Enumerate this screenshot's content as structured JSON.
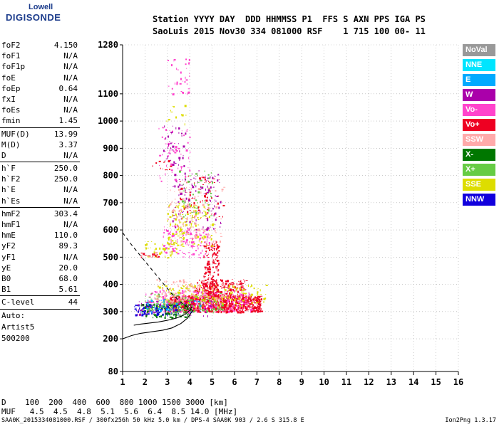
{
  "logo": {
    "line1": "Lowell",
    "line2": "DIGISONDE"
  },
  "header": {
    "line1": "Station YYYY DAY  DDD HHMMSS P1  FFS S AXN PPS IGA PS",
    "line2": "SaoLuis 2015 Nov30 334 081000 RSF    1 715 100 00- 11"
  },
  "parameters": [
    {
      "label": "foF2",
      "value": "4.150"
    },
    {
      "label": "foF1",
      "value": "N/A"
    },
    {
      "label": "foF1p",
      "value": "N/A"
    },
    {
      "label": "foE",
      "value": "N/A"
    },
    {
      "label": "foEp",
      "value": "0.64"
    },
    {
      "label": "fxI",
      "value": "N/A"
    },
    {
      "label": "foEs",
      "value": "N/A"
    },
    {
      "label": "fmin",
      "value": "1.45"
    },
    {
      "label": "MUF(D)",
      "value": "13.99"
    },
    {
      "label": "M(D)",
      "value": "3.37"
    },
    {
      "label": "D",
      "value": "N/A"
    },
    {
      "label": "h`F",
      "value": "250.0"
    },
    {
      "label": "h`F2",
      "value": "250.0"
    },
    {
      "label": "h`E",
      "value": "N/A"
    },
    {
      "label": "h`Es",
      "value": "N/A"
    },
    {
      "label": "hmF2",
      "value": "303.4"
    },
    {
      "label": "hmF1",
      "value": "N/A"
    },
    {
      "label": "hmE",
      "value": "110.0"
    },
    {
      "label": "yF2",
      "value": "89.3"
    },
    {
      "label": "yF1",
      "value": "N/A"
    },
    {
      "label": "yE",
      "value": "20.0"
    },
    {
      "label": "B0",
      "value": "68.0"
    },
    {
      "label": "B1",
      "value": "5.61"
    },
    {
      "label": "C-level",
      "value": "44"
    }
  ],
  "scaling": {
    "line1": "Auto:",
    "line2": "Artist5",
    "line3": "500200"
  },
  "legend": [
    {
      "label": "NoVal",
      "color": "#999999"
    },
    {
      "label": "NNE",
      "color": "#00e5ff"
    },
    {
      "label": "E",
      "color": "#00aaff"
    },
    {
      "label": "W",
      "color": "#aa00aa"
    },
    {
      "label": "Vo-",
      "color": "#ff44cc"
    },
    {
      "label": "Vo+",
      "color": "#ee0022"
    },
    {
      "label": "SSW",
      "color": "#ffaaaa"
    },
    {
      "label": "X-",
      "color": "#007700"
    },
    {
      "label": "X+",
      "color": "#66cc44"
    },
    {
      "label": "SSE",
      "color": "#dddd00"
    },
    {
      "label": "NNW",
      "color": "#1100dd"
    }
  ],
  "muf_table": {
    "line1": "D    100  200  400  600  800 1000 1500 3000 [km]",
    "line2": "MUF   4.5  4.5  4.8  5.1  5.6  6.4  8.5 14.0 [MHz]"
  },
  "footer": {
    "left": "SAA0K_2015334081000.RSF / 300fx256h 50 kHz 5.0 km / DPS-4 SAA0K 903 / 2.6 S 315.8 E",
    "right": "Ion2Png 1.3.17"
  },
  "chart_data": {
    "type": "scatter",
    "xlim": [
      1,
      16
    ],
    "ylim": [
      80,
      1280
    ],
    "x_ticks": [
      "1",
      "2",
      "3",
      "4",
      "5",
      "6",
      "7",
      "8",
      "9",
      "10",
      "11",
      "12",
      "13",
      "14",
      "15",
      "16"
    ],
    "y_ticks": [
      {
        "value": 80,
        "label": "80"
      },
      {
        "value": 200,
        "label": "200"
      },
      {
        "value": 300,
        "label": "300"
      },
      {
        "value": 400,
        "label": "400"
      },
      {
        "value": 500,
        "label": "500"
      },
      {
        "value": 600,
        "label": "600"
      },
      {
        "value": 700,
        "label": "700"
      },
      {
        "value": 800,
        "label": "800"
      },
      {
        "value": 900,
        "label": "900"
      },
      {
        "value": 1000,
        "label": "1000"
      },
      {
        "value": 1100,
        "label": "1100"
      },
      {
        "value": 1280,
        "label": "1280"
      }
    ],
    "grid": "dotted",
    "profile_curve": {
      "x": [
        1.0,
        1.4,
        1.8,
        2.3,
        2.8,
        3.2,
        3.6,
        3.9,
        4.1,
        4.15
      ],
      "y": [
        200,
        212,
        220,
        226,
        232,
        240,
        256,
        276,
        300,
        303.4
      ]
    },
    "profile_extrapolation": {
      "x": [
        1.0,
        1.4,
        1.8,
        2.3,
        2.8,
        3.2,
        3.6,
        3.9,
        4.15
      ],
      "y": [
        590,
        545,
        505,
        455,
        405,
        365,
        335,
        315,
        303.4
      ]
    },
    "trace_curve": {
      "x": [
        1.5,
        1.8,
        2.2,
        2.6,
        3.0,
        3.4,
        3.8,
        4.0,
        4.1
      ],
      "y": [
        250,
        254,
        258,
        262,
        268,
        276,
        290,
        305,
        318
      ]
    },
    "echo_regions": [
      {
        "color": "#ee0022",
        "xr": [
          3.0,
          7.2
        ],
        "yr": [
          300,
          360
        ],
        "n": 900
      },
      {
        "color": "#ee0022",
        "xr": [
          4.2,
          6.5
        ],
        "yr": [
          340,
          420
        ],
        "n": 250
      },
      {
        "color": "#ff44cc",
        "xr": [
          2.0,
          6.8
        ],
        "yr": [
          300,
          380
        ],
        "n": 300
      },
      {
        "color": "#007700",
        "xr": [
          1.8,
          4.0
        ],
        "yr": [
          280,
          330
        ],
        "n": 160
      },
      {
        "color": "#66cc44",
        "xr": [
          2.0,
          5.5
        ],
        "yr": [
          300,
          370
        ],
        "n": 160
      },
      {
        "color": "#dddd00",
        "xr": [
          2.5,
          7.4
        ],
        "yr": [
          320,
          400
        ],
        "n": 180
      },
      {
        "color": "#1100dd",
        "xr": [
          1.5,
          3.5
        ],
        "yr": [
          290,
          330
        ],
        "n": 80
      },
      {
        "color": "#aa00aa",
        "xr": [
          1.6,
          5.0
        ],
        "yr": [
          285,
          340
        ],
        "n": 60
      },
      {
        "color": "#00aaff",
        "xr": [
          2.0,
          4.5
        ],
        "yr": [
          300,
          350
        ],
        "n": 40
      },
      {
        "color": "#ffaaaa",
        "xr": [
          2.5,
          5.5
        ],
        "yr": [
          340,
          420
        ],
        "n": 100
      },
      {
        "color": "#ee0022",
        "xr": [
          4.6,
          5.3
        ],
        "yr": [
          360,
          560
        ],
        "n": 160
      },
      {
        "color": "#ff44cc",
        "xr": [
          2.8,
          5.0
        ],
        "yr": [
          500,
          620
        ],
        "n": 140
      },
      {
        "color": "#dddd00",
        "xr": [
          3.0,
          5.0
        ],
        "yr": [
          540,
          700
        ],
        "n": 160
      },
      {
        "color": "#ffaaaa",
        "xr": [
          3.0,
          5.5
        ],
        "yr": [
          560,
          760
        ],
        "n": 120
      },
      {
        "color": "#aa00aa",
        "xr": [
          3.2,
          5.4
        ],
        "yr": [
          600,
          820
        ],
        "n": 120
      },
      {
        "color": "#ee0022",
        "xr": [
          3.5,
          5.5
        ],
        "yr": [
          640,
          800
        ],
        "n": 60
      },
      {
        "color": "#66cc44",
        "xr": [
          3.5,
          5.0
        ],
        "yr": [
          650,
          820
        ],
        "n": 50
      },
      {
        "color": "#ff44cc",
        "xr": [
          2.6,
          4.0
        ],
        "yr": [
          780,
          980
        ],
        "n": 60
      },
      {
        "color": "#aa00aa",
        "xr": [
          2.8,
          3.8
        ],
        "yr": [
          830,
          990
        ],
        "n": 40
      },
      {
        "color": "#ee0022",
        "xr": [
          2.3,
          3.2
        ],
        "yr": [
          820,
          860
        ],
        "n": 12
      },
      {
        "color": "#ff44cc",
        "xr": [
          3.0,
          4.0
        ],
        "yr": [
          1100,
          1240
        ],
        "n": 35
      },
      {
        "color": "#dddd00",
        "xr": [
          2.0,
          3.4
        ],
        "yr": [
          500,
          560
        ],
        "n": 40
      },
      {
        "color": "#ee0022",
        "xr": [
          1.8,
          2.6
        ],
        "yr": [
          500,
          520
        ],
        "n": 20
      },
      {
        "color": "#dddd00",
        "xr": [
          2.8,
          3.8
        ],
        "yr": [
          990,
          1060
        ],
        "n": 12
      }
    ]
  }
}
